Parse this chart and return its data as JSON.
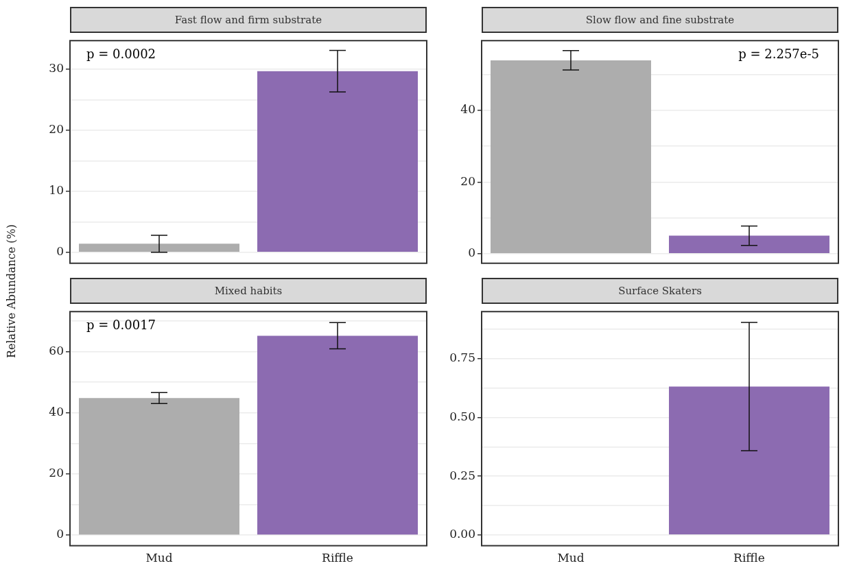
{
  "chart_data": [
    {
      "type": "bar",
      "title": "Fast flow and firm substrate",
      "ylabel": "Relative Abundance (%)",
      "categories": [
        null,
        null
      ],
      "values": [
        1.4,
        29.7
      ],
      "colors": [
        "#adadad",
        "#8c6bb1"
      ],
      "errors": [
        1.4,
        3.4
      ],
      "ylim": [
        -1.8,
        34.7
      ],
      "yticks": [
        0,
        {
          "value": 5,
          "label": null
        },
        10,
        {
          "value": 15,
          "label": null
        },
        20,
        {
          "value": 25,
          "label": null
        },
        30
      ],
      "annotations": [
        "p = 0.0002"
      ],
      "grid": "y",
      "tick_labels": "y"
    },
    {
      "type": "bar",
      "title": "Slow flow and fine substrate",
      "categories": [
        null,
        null
      ],
      "values": [
        54,
        5.0
      ],
      "colors": [
        "#adadad",
        "#8c6bb1"
      ],
      "errors": [
        2.7,
        2.7
      ],
      "ylim": [
        -2.7,
        59.5
      ],
      "yticks": [
        0,
        {
          "value": 10,
          "label": null
        },
        20,
        {
          "value": 30,
          "label": null
        },
        40,
        {
          "value": 50,
          "label": null
        }
      ],
      "annotations": [
        "p = 2.257e-5"
      ],
      "grid": "y",
      "tick_labels": "y"
    },
    {
      "type": "bar",
      "title": "Mixed habits",
      "categories": [
        "Mud",
        "Riffle"
      ],
      "values": [
        44.8,
        65.2
      ],
      "colors": [
        "#adadad",
        "#8c6bb1"
      ],
      "errors": [
        1.8,
        4.3
      ],
      "ylim": [
        -3.5,
        73.1
      ],
      "yticks": [
        0,
        {
          "value": 10,
          "label": null
        },
        20,
        {
          "value": 30,
          "label": null
        },
        40,
        {
          "value": 50,
          "label": null
        },
        60,
        {
          "value": 70,
          "label": null
        }
      ],
      "annotations": [
        "p = 0.0017"
      ],
      "grid": "y"
    },
    {
      "type": "bar",
      "title": "Surface Skaters",
      "categories": [
        "Mud",
        "Riffle"
      ],
      "values": [
        0,
        0.632
      ],
      "colors": [
        "#adadad",
        "#8c6bb1"
      ],
      "errors": [
        null,
        0.273
      ],
      "ylim": [
        -0.046,
        0.951
      ],
      "yticks": [
        {
          "value": 0,
          "label": "0.00"
        },
        {
          "value": 0.125,
          "label": null
        },
        0.25,
        {
          "value": 0.375,
          "label": null
        },
        {
          "value": 0.5,
          "label": "0.50"
        },
        {
          "value": 0.625,
          "label": null
        },
        0.75,
        {
          "value": 0.875,
          "label": null
        }
      ],
      "grid": "y"
    }
  ]
}
